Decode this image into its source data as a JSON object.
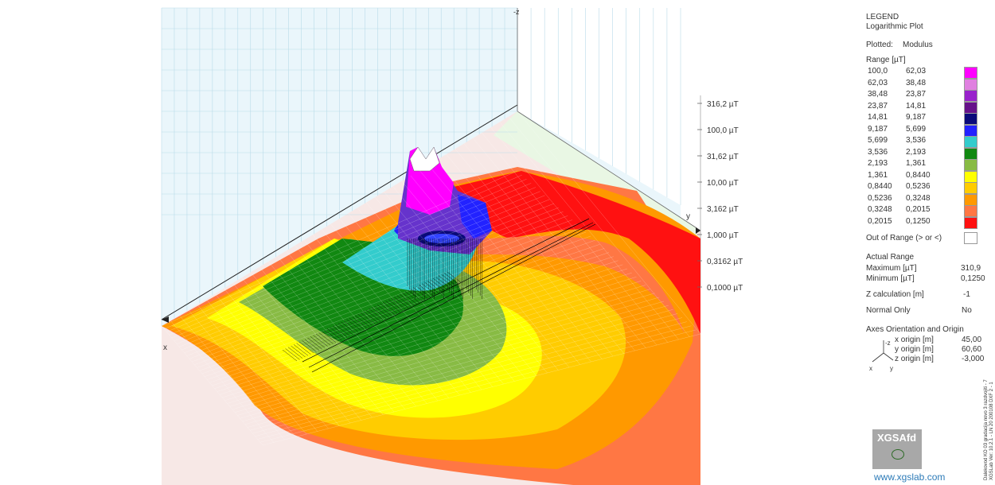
{
  "chart_data": {
    "type": "surface",
    "title": "LEGEND",
    "subtitle": "Logarithmic Plot",
    "plotted_label": "Plotted:",
    "plotted_value": "Modulus",
    "range_header": "Range [µT]",
    "ranges": [
      {
        "from": "100,0",
        "to": "62,03",
        "color": "#ff00ff"
      },
      {
        "from": "62,03",
        "to": "38,48",
        "color": "#e080e0"
      },
      {
        "from": "38,48",
        "to": "23,87",
        "color": "#9922cc"
      },
      {
        "from": "23,87",
        "to": "14,81",
        "color": "#66118a"
      },
      {
        "from": "14,81",
        "to": "9,187",
        "color": "#0a0a7a"
      },
      {
        "from": "9,187",
        "to": "5,699",
        "color": "#2222ff"
      },
      {
        "from": "5,699",
        "to": "3,536",
        "color": "#33cccc"
      },
      {
        "from": "3,536",
        "to": "2,193",
        "color": "#118811"
      },
      {
        "from": "2,193",
        "to": "1,361",
        "color": "#88bb44"
      },
      {
        "from": "1,361",
        "to": "0,8440",
        "color": "#ffff00"
      },
      {
        "from": "0,8440",
        "to": "0,5236",
        "color": "#ffcc00"
      },
      {
        "from": "0,5236",
        "to": "0,3248",
        "color": "#ff9900"
      },
      {
        "from": "0,3248",
        "to": "0,2015",
        "color": "#ff7744"
      },
      {
        "from": "0,2015",
        "to": "0,1250",
        "color": "#ff1111"
      }
    ],
    "out_of_range_label": "Out of Range (> or <)",
    "actual_range_label": "Actual Range",
    "maximum_label": "Maximum [µT]",
    "maximum_value": "310,9",
    "minimum_label": "Minimum [µT]",
    "minimum_value": "0,1250",
    "zcalc_label": "Z calculation [m]",
    "zcalc_value": "-1",
    "normal_only_label": "Normal Only",
    "normal_only_value": "No",
    "axes_title": "Axes Orientation and Origin",
    "axes_icon": {
      "z": "-z",
      "x": "x",
      "y": "y"
    },
    "origins": [
      {
        "label": "x origin [m]",
        "value": "45,00"
      },
      {
        "label": "y origin [m]",
        "value": "60,60"
      },
      {
        "label": "z origin [m]",
        "value": "-3,000"
      }
    ],
    "z_ticks": [
      "316,2 µT",
      "100,0 µT",
      "31,62 µT",
      "10,00 µT",
      "3,162 µT",
      "1,000 µT",
      "0,3162 µT",
      "0,1000 µT"
    ],
    "axis_labels": {
      "z": "-z",
      "y": "y",
      "x": "x"
    },
    "peak_value_uT": 310.9,
    "min_value_uT": 0.125,
    "log_scale": true,
    "side_text": [
      "Dalekovod KO 03 gradacija novo 3 razdvojiti - 7",
      "XGSLab Ver: 10.2.1 - LN 20 200108 DXF 2 - 1"
    ]
  },
  "logo": {
    "text": "XGSAfd",
    "site": "www.xgslab.com"
  }
}
